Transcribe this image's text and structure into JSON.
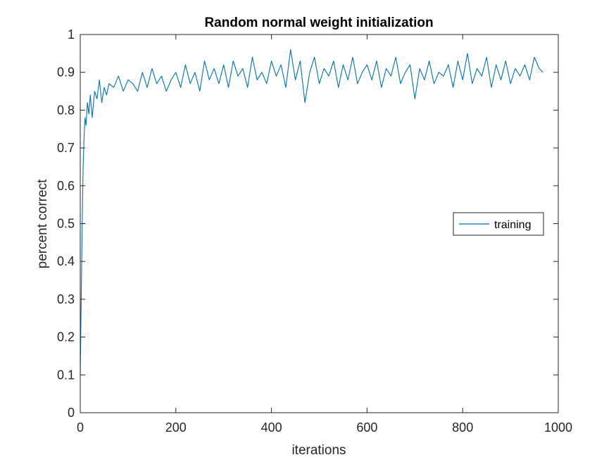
{
  "chart_data": {
    "type": "line",
    "title": "Random normal weight initialization",
    "xlabel": "iterations",
    "ylabel": "percent correct",
    "xlim": [
      0,
      1000
    ],
    "ylim": [
      0,
      1
    ],
    "xticks": [
      0,
      200,
      400,
      600,
      800,
      1000
    ],
    "xtick_labels": [
      "0",
      "200",
      "400",
      "600",
      "800",
      "1000"
    ],
    "yticks": [
      0,
      0.1,
      0.2,
      0.3,
      0.4,
      0.5,
      0.6,
      0.7,
      0.8,
      0.9,
      1
    ],
    "ytick_labels": [
      "0",
      "0.1",
      "0.2",
      "0.3",
      "0.4",
      "0.5",
      "0.6",
      "0.7",
      "0.8",
      "0.9",
      "1"
    ],
    "grid": false,
    "legend_position": "right",
    "series": [
      {
        "name": "training",
        "color": "#0072BD",
        "x": [
          0,
          2,
          4,
          6,
          8,
          10,
          12,
          15,
          18,
          21,
          25,
          30,
          35,
          40,
          45,
          50,
          55,
          60,
          70,
          80,
          90,
          100,
          110,
          120,
          130,
          140,
          150,
          160,
          170,
          180,
          190,
          200,
          210,
          220,
          230,
          240,
          250,
          260,
          270,
          280,
          290,
          300,
          310,
          320,
          330,
          340,
          350,
          360,
          370,
          380,
          390,
          400,
          410,
          420,
          430,
          440,
          450,
          460,
          470,
          480,
          490,
          500,
          510,
          520,
          530,
          540,
          550,
          560,
          570,
          580,
          590,
          600,
          610,
          620,
          630,
          640,
          650,
          660,
          670,
          680,
          690,
          700,
          710,
          720,
          730,
          740,
          750,
          760,
          770,
          780,
          790,
          800,
          810,
          820,
          830,
          840,
          850,
          860,
          870,
          880,
          890,
          900,
          910,
          920,
          930,
          940,
          950,
          960,
          968
        ],
        "values": [
          0.1,
          0.3,
          0.5,
          0.65,
          0.73,
          0.78,
          0.76,
          0.82,
          0.79,
          0.84,
          0.78,
          0.85,
          0.83,
          0.88,
          0.82,
          0.86,
          0.84,
          0.87,
          0.86,
          0.89,
          0.85,
          0.88,
          0.87,
          0.85,
          0.9,
          0.86,
          0.91,
          0.87,
          0.89,
          0.85,
          0.88,
          0.9,
          0.86,
          0.92,
          0.87,
          0.9,
          0.85,
          0.93,
          0.88,
          0.91,
          0.87,
          0.92,
          0.86,
          0.93,
          0.89,
          0.91,
          0.86,
          0.94,
          0.88,
          0.9,
          0.87,
          0.93,
          0.89,
          0.92,
          0.86,
          0.96,
          0.88,
          0.93,
          0.82,
          0.9,
          0.94,
          0.87,
          0.91,
          0.89,
          0.93,
          0.86,
          0.92,
          0.88,
          0.94,
          0.87,
          0.9,
          0.92,
          0.88,
          0.93,
          0.86,
          0.91,
          0.89,
          0.94,
          0.87,
          0.9,
          0.92,
          0.83,
          0.91,
          0.88,
          0.93,
          0.87,
          0.9,
          0.89,
          0.92,
          0.86,
          0.93,
          0.88,
          0.95,
          0.87,
          0.91,
          0.89,
          0.94,
          0.86,
          0.92,
          0.88,
          0.93,
          0.87,
          0.91,
          0.89,
          0.92,
          0.88,
          0.94,
          0.91,
          0.9
        ]
      }
    ]
  }
}
